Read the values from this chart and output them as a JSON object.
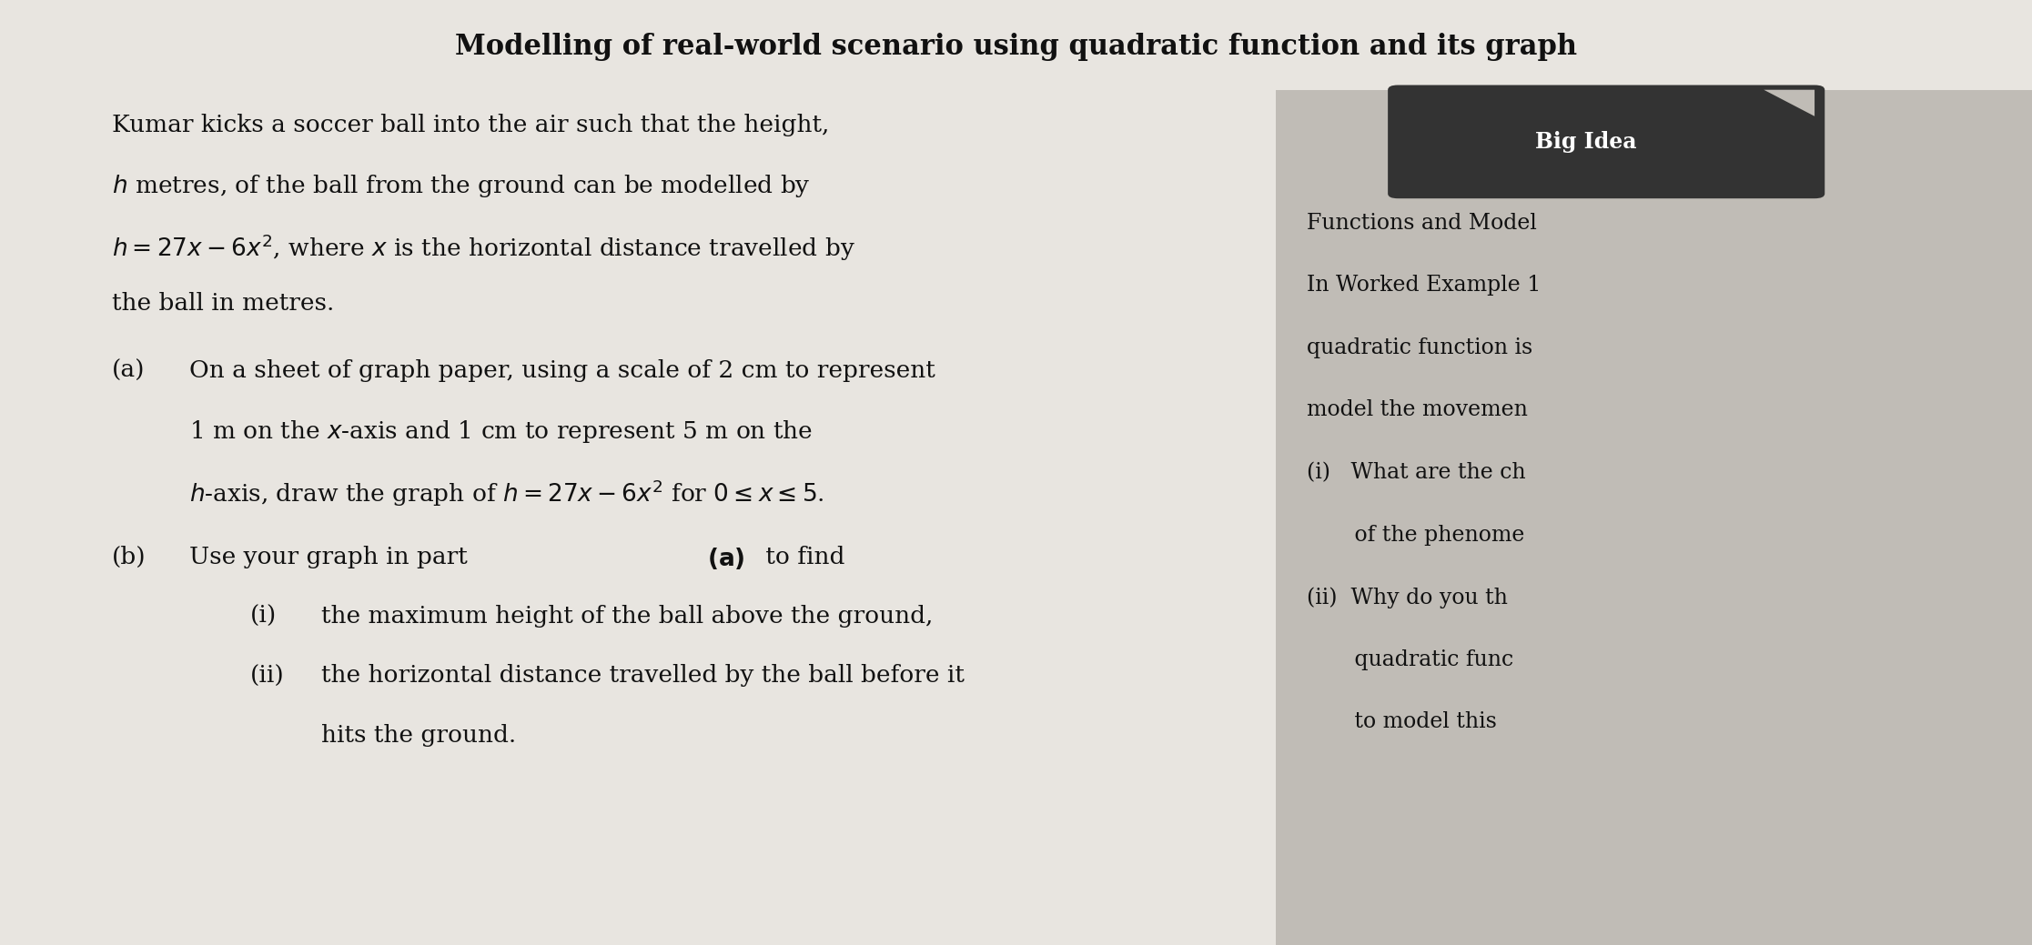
{
  "bg_color": "#d8d4ce",
  "paper_color": "#e8e5e0",
  "title": "Modelling of real-world scenario using quadratic function and its graph",
  "title_fontsize": 22,
  "body_fontsize": 19,
  "sidebar_fontsize": 17,
  "big_idea_fontsize": 17,
  "body_lines": [
    "Kumar kicks a soccer ball into the air such that the height,",
    "$h$ metres, of the ball from the ground can be modelled by",
    "$h = 27x - 6x^2$, where $x$ is the horizontal distance travelled by",
    "the ball in metres."
  ],
  "part_a_label": "(a)",
  "part_a_lines": [
    "On a sheet of graph paper, using a scale of 2 cm to represent",
    "1 m on the $x$-axis and 1 cm to represent 5 m on the",
    "$h$-axis, draw the graph of $h = 27x - 6x^2$ for $0 \\leq x \\leq 5$."
  ],
  "part_b_label": "(b)",
  "part_b_intro": "Use your graph in part (a) to find",
  "part_b_bold_a": "(a)",
  "part_bi_label": "(i)",
  "part_bi_text": "the maximum height of the ball above the ground,",
  "part_bii_label": "(ii)",
  "part_bii_lines": [
    "the horizontal distance travelled by the ball before it",
    "hits the ground."
  ],
  "big_idea_label": "Big Idea",
  "big_idea_bg": "#333333",
  "big_idea_text_color": "#ffffff",
  "sidebar_bg": "#c0bcb6",
  "sidebar_lines": [
    "Functions and Model",
    "In Worked Example 1",
    "quadratic function is",
    "model the movemen",
    "(i)   What are the ch",
    "       of the phenome",
    "(ii)  Why do you th",
    "       quadratic func",
    "       to model this"
  ]
}
